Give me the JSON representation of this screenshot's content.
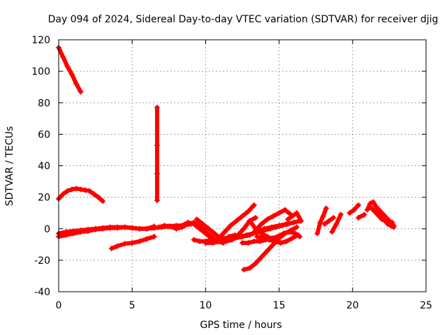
{
  "chart_data": {
    "type": "scatter",
    "title": "Day 094 of 2024, Sidereal Day-to-day VTEC variation (SDTVAR) for receiver djig",
    "xlabel": "GPS time / hours",
    "ylabel": "SDTVAR / TECUs",
    "xlim": [
      0,
      25
    ],
    "ylim": [
      -40,
      120
    ],
    "xticks": [
      0,
      5,
      10,
      15,
      20,
      25
    ],
    "yticks": [
      -40,
      -20,
      0,
      20,
      40,
      60,
      80,
      100,
      120
    ],
    "xtick_labels": [
      "0",
      "5",
      "10",
      "15",
      "20",
      "25"
    ],
    "ytick_labels": [
      "-40",
      "-20",
      "0",
      "20",
      "40",
      "60",
      "80",
      "100",
      "120"
    ],
    "grid": true,
    "marker": "plus",
    "color": "#ff0000",
    "series": [
      {
        "x": [
          0.0,
          0.3,
          0.6,
          0.9,
          1.2,
          1.5
        ],
        "y": [
          115,
          109,
          103,
          98,
          92,
          87
        ]
      },
      {
        "x": [
          0.0,
          0.3,
          0.6,
          0.9,
          1.2,
          1.5,
          1.8,
          2.1,
          2.4,
          2.7,
          3.0
        ],
        "y": [
          19,
          22,
          24,
          25,
          25.5,
          25,
          24.5,
          24,
          22,
          20,
          17.5
        ]
      },
      {
        "x": [
          6.7,
          6.7,
          6.7,
          6.7
        ],
        "y": [
          77,
          53,
          35,
          18
        ]
      },
      {
        "x": [
          0.0,
          0.5,
          1.0,
          1.5,
          2.0,
          2.5,
          3.0,
          3.5,
          4.0,
          4.5,
          5.0,
          5.5,
          6.0,
          6.5,
          7.0,
          7.5,
          8.0,
          8.5,
          9.0
        ],
        "y": [
          -5,
          -4,
          -3,
          -2,
          -1.5,
          -0.5,
          0,
          0.5,
          0.5,
          1,
          0.5,
          0,
          0,
          0.5,
          1,
          1.5,
          2,
          2,
          3
        ]
      },
      {
        "x": [
          0.0,
          0.5,
          1.0,
          1.5,
          2.0,
          2.5,
          3.0,
          3.5,
          4.0,
          4.5,
          5.0,
          5.5,
          6.0,
          6.5
        ],
        "y": [
          -3,
          -2,
          -1.5,
          -1,
          -0.5,
          0,
          0.5,
          1,
          1,
          1,
          0.5,
          0,
          0,
          1.5
        ]
      },
      {
        "x": [
          3.6,
          4.0,
          4.5,
          5.0,
          5.5,
          6.0,
          6.5
        ],
        "y": [
          -12.5,
          -11,
          -9.5,
          -9,
          -8,
          -6.5,
          -5
        ]
      },
      {
        "x": [
          6.8,
          7.2,
          7.6,
          8.0,
          8.4,
          8.8,
          9.2,
          9.6,
          10.0,
          10.4,
          10.8,
          11.2,
          11.6,
          12.0
        ],
        "y": [
          1,
          2,
          1.5,
          0,
          1,
          3,
          4,
          2,
          -2,
          -5,
          -8,
          -7,
          -5,
          -4
        ]
      },
      {
        "x": [
          8.0,
          8.4,
          8.8,
          9.2,
          9.6,
          10.0,
          10.4,
          10.8,
          11.2
        ],
        "y": [
          0,
          2,
          4,
          3,
          0,
          -3,
          -6,
          -8,
          -9
        ]
      },
      {
        "x": [
          9.2,
          9.6,
          10.0,
          10.4,
          10.8,
          11.2,
          11.6,
          12.0,
          12.4,
          12.8,
          13.2,
          13.6,
          14.0,
          14.4,
          14.8,
          15.2,
          15.6,
          16.0,
          16.4
        ],
        "y": [
          -7,
          -8,
          -8,
          -7,
          -7,
          -6,
          -6,
          -5,
          -5,
          -4,
          -3,
          -2,
          -1,
          0,
          1,
          2,
          3,
          4,
          5
        ]
      },
      {
        "x": [
          9.4,
          9.8,
          10.2,
          10.6,
          11.0,
          11.4,
          11.8,
          12.2,
          12.6,
          13.0,
          13.4
        ],
        "y": [
          6,
          3,
          0,
          -3,
          -6,
          -8,
          -7,
          -4,
          0,
          5,
          7
        ]
      },
      {
        "x": [
          10.5,
          10.9,
          11.3,
          11.7,
          12.1,
          12.5,
          12.9,
          13.3
        ],
        "y": [
          -8,
          -6,
          -2,
          2,
          5,
          8,
          11,
          15
        ]
      },
      {
        "x": [
          10.0,
          10.5,
          11.0,
          11.5,
          12.0,
          12.5,
          13.0,
          13.5,
          14.0,
          14.5,
          15.0,
          15.5,
          16.0
        ],
        "y": [
          -9,
          -9,
          -8,
          -7,
          -6,
          -5,
          -4,
          -2,
          0,
          1,
          2,
          3,
          4
        ]
      },
      {
        "x": [
          12.6,
          13.0,
          13.4,
          13.8,
          14.2,
          14.6,
          15.0,
          15.4,
          15.8
        ],
        "y": [
          -26,
          -25,
          -22,
          -18,
          -14,
          -10,
          -6,
          -3,
          -1
        ]
      },
      {
        "x": [
          13.0,
          13.4,
          13.8,
          14.2,
          14.6,
          15.0,
          15.4,
          15.8,
          16.2
        ],
        "y": [
          5,
          0,
          -3,
          -5,
          -7,
          -5,
          -3,
          -1,
          1
        ]
      },
      {
        "x": [
          13.4,
          13.8,
          14.2,
          14.6,
          15.0,
          15.4,
          15.8
        ],
        "y": [
          -1,
          3,
          6,
          8,
          10,
          12,
          9
        ]
      },
      {
        "x": [
          12.5,
          12.9,
          13.3,
          13.7,
          14.1,
          14.5,
          14.9,
          15.3,
          15.7,
          16.1,
          16.4
        ],
        "y": [
          -9,
          -9,
          -8,
          -8,
          -7,
          -6,
          -5,
          -3,
          -2,
          -3,
          -5
        ]
      },
      {
        "x": [
          13.5,
          13.9,
          14.3,
          14.7,
          15.1,
          15.5,
          15.9,
          16.3
        ],
        "y": [
          -5,
          -6,
          -7,
          -8,
          -9,
          -8,
          -6,
          -4
        ]
      },
      {
        "x": [
          15.6,
          15.9,
          16.2,
          16.5
        ],
        "y": [
          6,
          8,
          10,
          5
        ]
      },
      {
        "x": [
          17.6,
          17.8,
          18.0,
          18.2
        ],
        "y": [
          -3,
          4,
          8,
          13
        ]
      },
      {
        "x": [
          18.1,
          18.4,
          18.7
        ],
        "y": [
          3,
          5,
          7
        ]
      },
      {
        "x": [
          18.6,
          18.9,
          19.2
        ],
        "y": [
          -2,
          3,
          9
        ]
      },
      {
        "x": [
          19.8,
          20.1,
          20.4
        ],
        "y": [
          10,
          12,
          15
        ]
      },
      {
        "x": [
          20.4,
          20.8
        ],
        "y": [
          7,
          9
        ]
      },
      {
        "x": [
          21.0,
          21.2,
          21.4,
          21.6,
          21.8,
          22.0,
          22.2,
          22.4,
          22.6,
          22.8
        ],
        "y": [
          12,
          16,
          17,
          14,
          12,
          10,
          8,
          6,
          4,
          2
        ]
      },
      {
        "x": [
          21.2,
          21.4,
          21.6,
          21.8,
          22.0,
          22.2,
          22.4,
          22.6,
          22.8
        ],
        "y": [
          14,
          12,
          10,
          8,
          6,
          5,
          3,
          2,
          1
        ]
      },
      {
        "x": [
          21.5,
          21.8,
          22.1,
          22.4,
          22.7
        ],
        "y": [
          11,
          9,
          7,
          5,
          4
        ]
      }
    ]
  }
}
